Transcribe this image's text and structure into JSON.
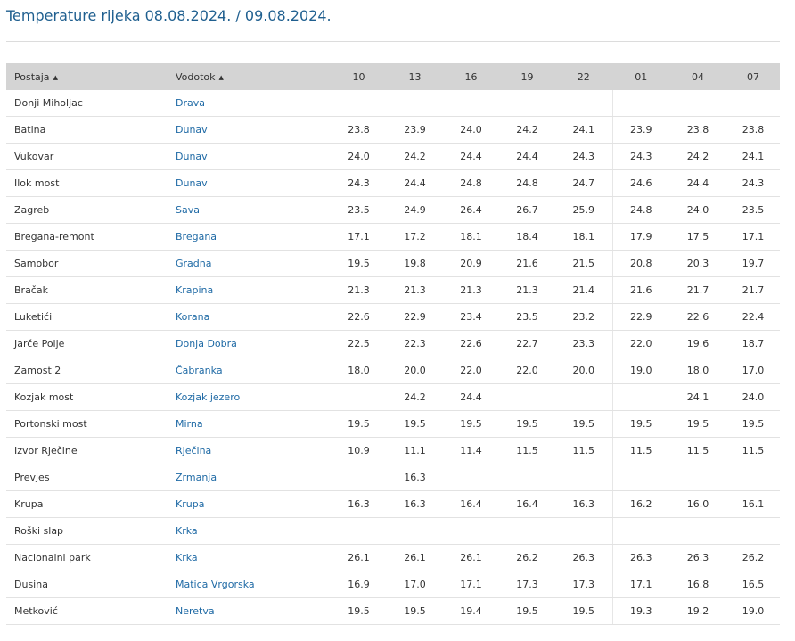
{
  "title": "Temperature rijeka 08.08.2024. / 09.08.2024.",
  "columns": {
    "station": "Postaja",
    "river": "Vodotok",
    "hours": [
      "10",
      "13",
      "16",
      "19",
      "22",
      "01",
      "04",
      "07"
    ]
  },
  "rows": [
    {
      "station": "Donji Miholjac",
      "river": "Drava",
      "values": [
        "",
        "",
        "",
        "",
        "",
        "",
        "",
        ""
      ]
    },
    {
      "station": "Batina",
      "river": "Dunav",
      "values": [
        "23.8",
        "23.9",
        "24.0",
        "24.2",
        "24.1",
        "23.9",
        "23.8",
        "23.8"
      ]
    },
    {
      "station": "Vukovar",
      "river": "Dunav",
      "values": [
        "24.0",
        "24.2",
        "24.4",
        "24.4",
        "24.3",
        "24.3",
        "24.2",
        "24.1"
      ]
    },
    {
      "station": "Ilok most",
      "river": "Dunav",
      "values": [
        "24.3",
        "24.4",
        "24.8",
        "24.8",
        "24.7",
        "24.6",
        "24.4",
        "24.3"
      ]
    },
    {
      "station": "Zagreb",
      "river": "Sava",
      "values": [
        "23.5",
        "24.9",
        "26.4",
        "26.7",
        "25.9",
        "24.8",
        "24.0",
        "23.5"
      ]
    },
    {
      "station": "Bregana-remont",
      "river": "Bregana",
      "values": [
        "17.1",
        "17.2",
        "18.1",
        "18.4",
        "18.1",
        "17.9",
        "17.5",
        "17.1"
      ]
    },
    {
      "station": "Samobor",
      "river": "Gradna",
      "values": [
        "19.5",
        "19.8",
        "20.9",
        "21.6",
        "21.5",
        "20.8",
        "20.3",
        "19.7"
      ]
    },
    {
      "station": "Bračak",
      "river": "Krapina",
      "values": [
        "21.3",
        "21.3",
        "21.3",
        "21.3",
        "21.4",
        "21.6",
        "21.7",
        "21.7"
      ]
    },
    {
      "station": "Luketići",
      "river": "Korana",
      "values": [
        "22.6",
        "22.9",
        "23.4",
        "23.5",
        "23.2",
        "22.9",
        "22.6",
        "22.4"
      ]
    },
    {
      "station": "Jarče Polje",
      "river": "Donja Dobra",
      "values": [
        "22.5",
        "22.3",
        "22.6",
        "22.7",
        "23.3",
        "22.0",
        "19.6",
        "18.7"
      ]
    },
    {
      "station": "Zamost 2",
      "river": "Čabranka",
      "values": [
        "18.0",
        "20.0",
        "22.0",
        "22.0",
        "20.0",
        "19.0",
        "18.0",
        "17.0"
      ]
    },
    {
      "station": "Kozjak most",
      "river": "Kozjak jezero",
      "values": [
        "",
        "24.2",
        "24.4",
        "",
        "",
        "",
        "24.1",
        "24.0"
      ]
    },
    {
      "station": "Portonski most",
      "river": "Mirna",
      "values": [
        "19.5",
        "19.5",
        "19.5",
        "19.5",
        "19.5",
        "19.5",
        "19.5",
        "19.5"
      ]
    },
    {
      "station": "Izvor Rječine",
      "river": "Rječina",
      "values": [
        "10.9",
        "11.1",
        "11.4",
        "11.5",
        "11.5",
        "11.5",
        "11.5",
        "11.5"
      ]
    },
    {
      "station": "Prevjes",
      "river": "Zrmanja",
      "values": [
        "",
        "16.3",
        "",
        "",
        "",
        "",
        "",
        ""
      ]
    },
    {
      "station": "Krupa",
      "river": "Krupa",
      "values": [
        "16.3",
        "16.3",
        "16.4",
        "16.4",
        "16.3",
        "16.2",
        "16.0",
        "16.1"
      ]
    },
    {
      "station": "Roški slap",
      "river": "Krka",
      "values": [
        "",
        "",
        "",
        "",
        "",
        "",
        "",
        ""
      ]
    },
    {
      "station": "Nacionalni park",
      "river": "Krka",
      "values": [
        "26.1",
        "26.1",
        "26.1",
        "26.2",
        "26.3",
        "26.3",
        "26.3",
        "26.2"
      ]
    },
    {
      "station": "Dusina",
      "river": "Matica Vrgorska",
      "values": [
        "16.9",
        "17.0",
        "17.1",
        "17.3",
        "17.3",
        "17.1",
        "16.8",
        "16.5"
      ]
    },
    {
      "station": "Metković",
      "river": "Neretva",
      "values": [
        "19.5",
        "19.5",
        "19.4",
        "19.5",
        "19.5",
        "19.3",
        "19.2",
        "19.0"
      ]
    }
  ],
  "colors": {
    "title": "#1f5f8f",
    "header_bg": "#d4d4d4",
    "link": "#1f6aa5",
    "row_border": "#e2e2e2"
  },
  "icons": {
    "sort": "sort-up-icon"
  }
}
